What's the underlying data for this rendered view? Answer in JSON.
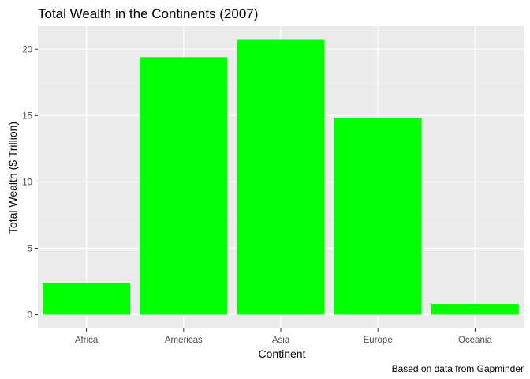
{
  "chart_data": {
    "type": "bar",
    "title": "Total Wealth in the Continents (2007)",
    "xlabel": "Continent",
    "ylabel": "Total Wealth ($ Trillion)",
    "caption": "Based on data from Gapminder",
    "categories": [
      "Africa",
      "Americas",
      "Asia",
      "Europe",
      "Oceania"
    ],
    "values": [
      2.4,
      19.4,
      20.7,
      14.8,
      0.8
    ],
    "ylim": [
      -1.04,
      21.74
    ],
    "yticks": [
      0,
      5,
      10,
      15,
      20
    ],
    "ytick_labels": [
      "0",
      "5",
      "10",
      "15",
      "20"
    ],
    "grid": true,
    "colors": {
      "bar": "#00ff00",
      "panel": "#ebebeb",
      "grid_major": "#ffffff",
      "grid_minor": "#f4f4f4",
      "tick": "#333333"
    }
  }
}
